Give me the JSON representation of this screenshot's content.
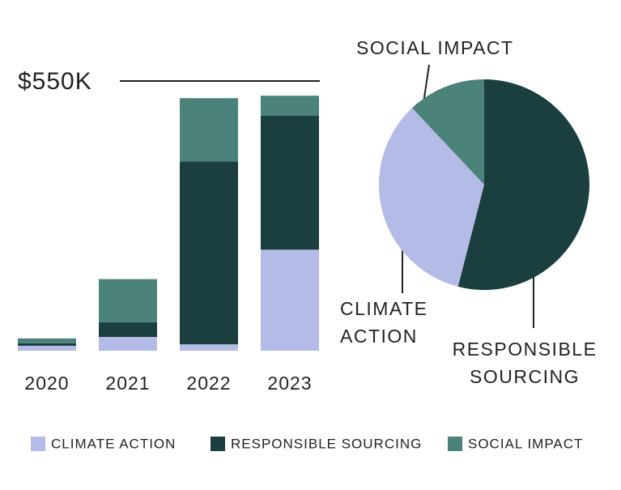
{
  "chart_data": [
    {
      "type": "bar",
      "categories": [
        "2020",
        "2021",
        "2022",
        "2023"
      ],
      "series": [
        {
          "name": "CLIMATE ACTION",
          "color": "#b4bbe6",
          "values": [
            10,
            28,
            13,
            206
          ]
        },
        {
          "name": "RESPONSIBLE SOURCING",
          "color": "#1b3f3f",
          "values": [
            5,
            30,
            373,
            273
          ]
        },
        {
          "name": "SOCIAL IMPACT",
          "color": "#4b8279",
          "values": [
            10,
            88,
            129,
            41
          ]
        }
      ],
      "ylim": [
        0,
        550
      ],
      "yticks": [
        {
          "value": 550,
          "label": "$550K"
        }
      ]
    },
    {
      "type": "pie",
      "categories": [
        "RESPONSIBLE SOURCING",
        "CLIMATE ACTION",
        "SOCIAL IMPACT"
      ],
      "values": [
        54,
        34,
        12
      ],
      "colors": [
        "#1b3f3f",
        "#b4bbe6",
        "#4b8279"
      ]
    }
  ]
}
